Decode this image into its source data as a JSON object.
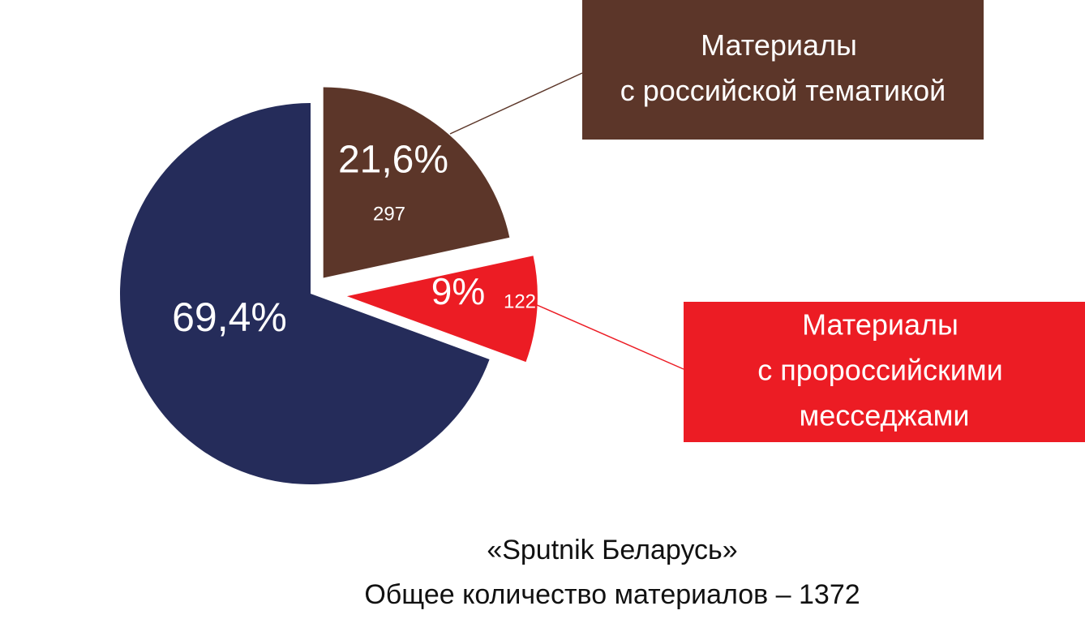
{
  "chart_data": {
    "type": "pie",
    "title": "«Sputnik Беларусь»",
    "subtitle": "Общее количество материалов – 1372",
    "categories": [
      null,
      "Материалы\nс российской тематикой",
      "Материалы\nс пророссийскими\nмесседжами"
    ],
    "values": [
      69.4,
      21.6,
      9
    ],
    "value_labels": [
      "69,4%",
      "21,6%",
      "9%"
    ],
    "counts": [
      null,
      297,
      122
    ],
    "colors": [
      "#252c5a",
      "#5c3629",
      "#ec1c24"
    ]
  }
}
